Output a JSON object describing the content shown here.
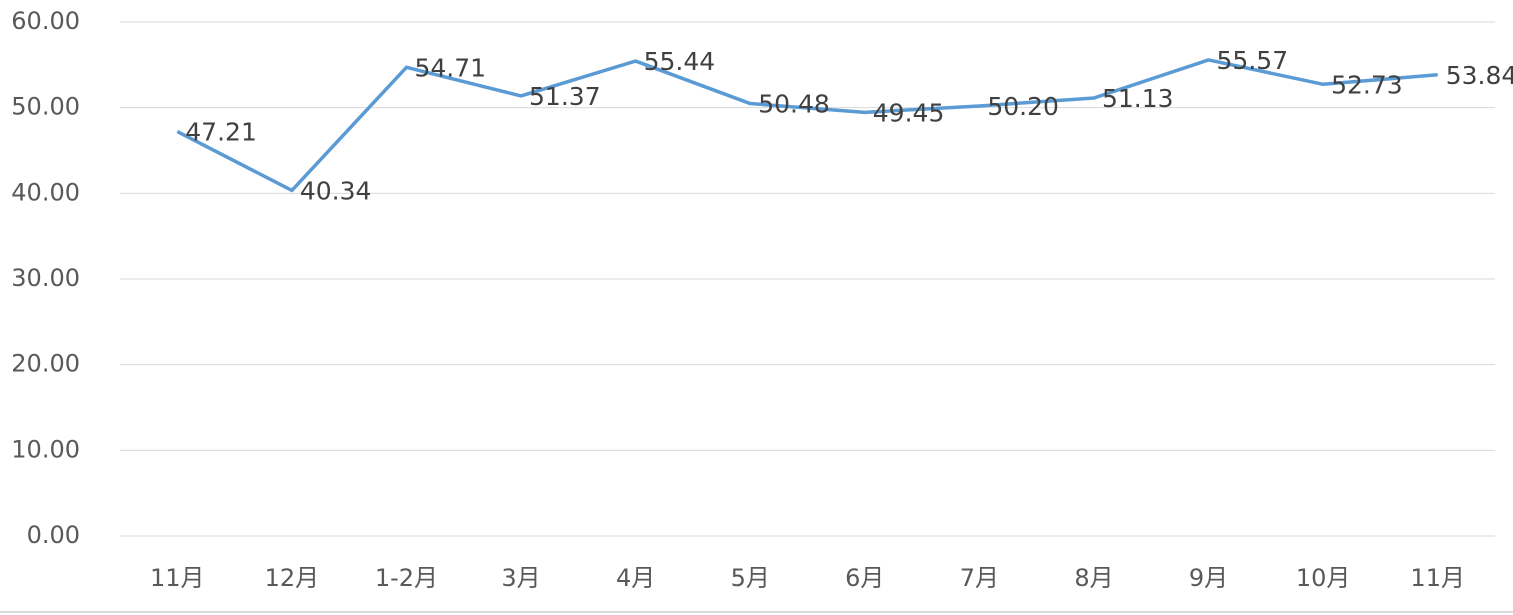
{
  "chart_data": {
    "type": "line",
    "categories": [
      "11月",
      "12月",
      "1-2月",
      "3月",
      "4月",
      "5月",
      "6月",
      "7月",
      "8月",
      "9月",
      "10月",
      "11月"
    ],
    "series": [
      {
        "color": "#5b9bd5",
        "values": [
          47.21,
          40.34,
          54.71,
          51.37,
          55.44,
          50.48,
          49.45,
          50.2,
          51.13,
          55.57,
          52.73,
          53.84
        ],
        "value_labels": [
          "47.21",
          "40.34",
          "54.71",
          "51.37",
          "55.44",
          "50.48",
          "49.45",
          "50.20",
          "51.13",
          "55.57",
          "52.73",
          "53.84"
        ]
      }
    ],
    "ylim": [
      0,
      60
    ],
    "yticks": [
      {
        "value": 0,
        "label": "0.00"
      },
      {
        "value": 10,
        "label": "10.00"
      },
      {
        "value": 20,
        "label": "20.00"
      },
      {
        "value": 30,
        "label": "30.00"
      },
      {
        "value": 40,
        "label": "40.00"
      },
      {
        "value": 50,
        "label": "50.00"
      },
      {
        "value": 60,
        "label": "60.00"
      }
    ],
    "grid": true
  }
}
